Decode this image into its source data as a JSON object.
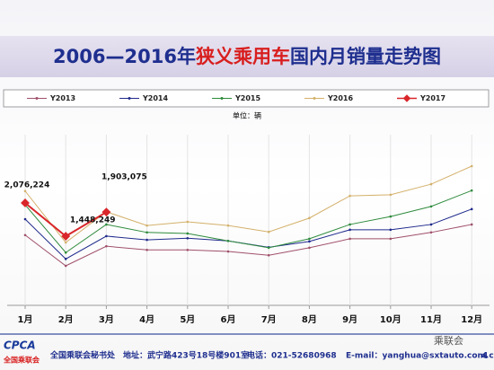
{
  "chart_data": {
    "type": "line",
    "title_parts": [
      "2006—2016年",
      "狭义乘用车",
      "国内月销量走势图"
    ],
    "title_colors": [
      "#1f2f8f",
      "#d81e1e",
      "#1f2f8f"
    ],
    "unit": "单位：辆",
    "categories": [
      "1月",
      "2月",
      "3月",
      "4月",
      "5月",
      "6月",
      "7月",
      "8月",
      "9月",
      "10月",
      "11月",
      "12月"
    ],
    "series": [
      {
        "name": "Y2013",
        "color": "#a0506a",
        "values": [
          1470000,
          890000,
          1260000,
          1190000,
          1190000,
          1160000,
          1090000,
          1230000,
          1400000,
          1400000,
          1520000,
          1670000
        ]
      },
      {
        "name": "Y2014",
        "color": "#1f2a8c",
        "values": [
          1770000,
          1020000,
          1450000,
          1380000,
          1410000,
          1360000,
          1240000,
          1350000,
          1570000,
          1570000,
          1670000,
          1960000
        ]
      },
      {
        "name": "Y2015",
        "color": "#2e8b3c",
        "values": [
          2040000,
          1140000,
          1670000,
          1520000,
          1500000,
          1360000,
          1230000,
          1400000,
          1670000,
          1820000,
          2010000,
          2310000
        ]
      },
      {
        "name": "Y2016",
        "color": "#d4b06a",
        "values": [
          2300000,
          1330000,
          1910000,
          1650000,
          1720000,
          1650000,
          1530000,
          1790000,
          2210000,
          2230000,
          2430000,
          2770000
        ]
      },
      {
        "name": "Y2017",
        "color": "#d9262a",
        "values": [
          2076224,
          1448249,
          1903075,
          null,
          null,
          null,
          null,
          null,
          null,
          null,
          null,
          null
        ],
        "value_labels": [
          "2,076,224",
          "1,448,249",
          "1,903,075",
          null,
          null,
          null,
          null,
          null,
          null,
          null,
          null,
          null
        ]
      }
    ],
    "footer": {
      "logo": "CPCA",
      "logo_sub": "全国乘联会",
      "org": "全国乘联会秘书处",
      "address": "地址：武宁路423号18号楼901室",
      "phone": "电话：021-52680968",
      "email": "E-mail：yanghua@sxtauto.com.cn",
      "page": "4",
      "watermark": "乘联会"
    }
  }
}
